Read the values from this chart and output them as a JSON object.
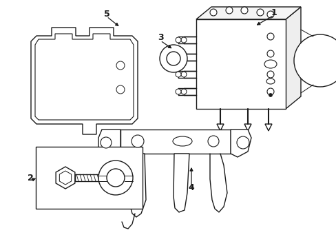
{
  "background_color": "#ffffff",
  "line_color": "#1a1a1a",
  "line_width": 1.0,
  "figsize": [
    4.89,
    3.6
  ],
  "dpi": 100
}
